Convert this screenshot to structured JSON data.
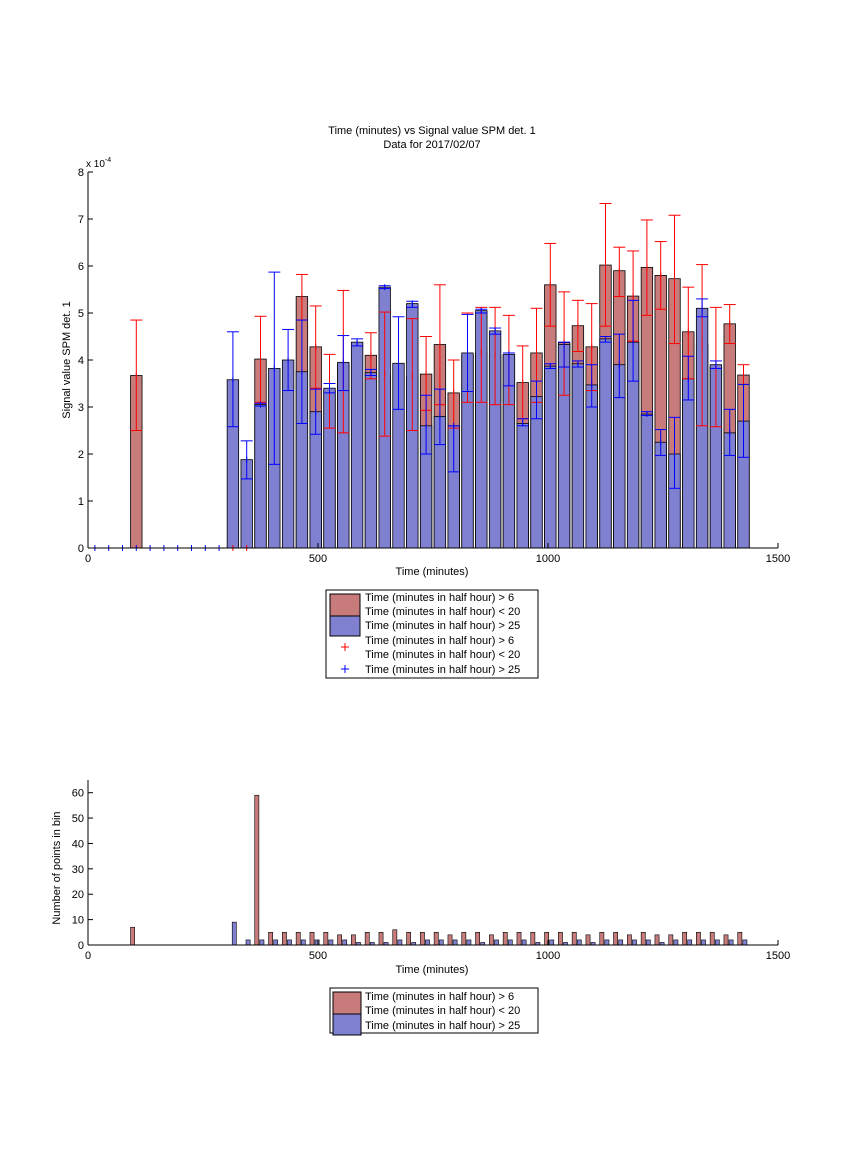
{
  "colors": {
    "red_fill": "#C77B7B",
    "blue_fill": "#8080D0",
    "red_err": "#FF0000",
    "blue_err": "#0000FF"
  },
  "chart_data": [
    {
      "type": "bar",
      "title": "Time (minutes) vs Signal value SPM det. 1",
      "subtitle": "Data for 2017/02/07",
      "xlabel": "Time (minutes)",
      "ylabel": "Signal value SPM det. 1",
      "y_exponent": "x 10",
      "y_exponent_power": "-4",
      "xlim": [
        0,
        1500
      ],
      "ylim": [
        0,
        8
      ],
      "xticks": [
        "0",
        "500",
        "1000",
        "1500"
      ],
      "yticks": [
        "0",
        "1",
        "2",
        "3",
        "4",
        "5",
        "6",
        "7",
        "8"
      ],
      "legend": {
        "placement": "below",
        "entries": [
          "Time (minutes in half hour) > 6",
          "Time (minutes in half hour) < 20",
          "Time (minutes in half hour) > 25",
          "Time (minutes in half hour) > 6",
          "Time (minutes in half hour) < 20",
          "Time (minutes in half hour) > 25"
        ]
      },
      "series": [
        {
          "name": "Time (minutes in half hour) > 6 & Time (minutes in half hour) < 20",
          "bars": [
            {
              "x": 105,
              "y": 3.67,
              "lo": 2.5,
              "hi": 4.85
            },
            {
              "x": 375,
              "y": 4.02,
              "lo": 3.1,
              "hi": 4.93
            },
            {
              "x": 465,
              "y": 5.35,
              "lo": 4.85,
              "hi": 5.82
            },
            {
              "x": 495,
              "y": 4.28,
              "lo": 3.4,
              "hi": 5.15
            },
            {
              "x": 525,
              "y": 3.35,
              "lo": 2.55,
              "hi": 4.12
            },
            {
              "x": 555,
              "y": 3.9,
              "lo": 2.45,
              "hi": 5.48
            },
            {
              "x": 615,
              "y": 4.1,
              "lo": 3.6,
              "hi": 4.58
            },
            {
              "x": 645,
              "y": 3.7,
              "lo": 2.38,
              "hi": 5.02
            },
            {
              "x": 705,
              "y": 3.65,
              "lo": 2.5,
              "hi": 4.88
            },
            {
              "x": 735,
              "y": 3.7,
              "lo": 2.93,
              "hi": 4.5
            },
            {
              "x": 765,
              "y": 4.33,
              "lo": 3.05,
              "hi": 5.6
            },
            {
              "x": 795,
              "y": 3.3,
              "lo": 2.55,
              "hi": 4.0
            },
            {
              "x": 825,
              "y": 4.1,
              "lo": 3.1,
              "hi": 5.0
            },
            {
              "x": 855,
              "y": 4.15,
              "lo": 3.1,
              "hi": 5.12
            },
            {
              "x": 885,
              "y": 4.1,
              "lo": 3.05,
              "hi": 5.12
            },
            {
              "x": 915,
              "y": 4.1,
              "lo": 3.05,
              "hi": 4.95
            },
            {
              "x": 945,
              "y": 3.52,
              "lo": 2.75,
              "hi": 4.3
            },
            {
              "x": 975,
              "y": 4.15,
              "lo": 3.1,
              "hi": 5.1
            },
            {
              "x": 1005,
              "y": 5.6,
              "lo": 4.72,
              "hi": 6.48
            },
            {
              "x": 1035,
              "y": 4.37,
              "lo": 3.25,
              "hi": 5.45
            },
            {
              "x": 1065,
              "y": 4.73,
              "lo": 4.18,
              "hi": 5.27
            },
            {
              "x": 1095,
              "y": 4.28,
              "lo": 3.35,
              "hi": 5.2
            },
            {
              "x": 1125,
              "y": 6.02,
              "lo": 4.72,
              "hi": 7.33
            },
            {
              "x": 1155,
              "y": 5.9,
              "lo": 5.35,
              "hi": 6.4
            },
            {
              "x": 1185,
              "y": 5.36,
              "lo": 4.4,
              "hi": 6.32
            },
            {
              "x": 1215,
              "y": 5.97,
              "lo": 4.95,
              "hi": 6.98
            },
            {
              "x": 1245,
              "y": 5.8,
              "lo": 5.08,
              "hi": 6.52
            },
            {
              "x": 1275,
              "y": 5.73,
              "lo": 4.35,
              "hi": 7.08
            },
            {
              "x": 1305,
              "y": 4.6,
              "lo": 3.6,
              "hi": 5.55
            },
            {
              "x": 1335,
              "y": 4.33,
              "lo": 2.6,
              "hi": 6.03
            },
            {
              "x": 1365,
              "y": 3.85,
              "lo": 2.58,
              "hi": 5.12
            },
            {
              "x": 1395,
              "y": 4.77,
              "lo": 4.35,
              "hi": 5.18
            },
            {
              "x": 1425,
              "y": 3.68,
              "lo": 3.48,
              "hi": 3.9
            }
          ]
        },
        {
          "name": "Time (minutes in half hour) > 25",
          "bars": [
            {
              "x": 315,
              "y": 3.58,
              "lo": 2.58,
              "hi": 4.6
            },
            {
              "x": 345,
              "y": 1.88,
              "lo": 1.47,
              "hi": 2.28
            },
            {
              "x": 375,
              "y": 3.05,
              "lo": 3.02,
              "hi": 3.08
            },
            {
              "x": 405,
              "y": 3.82,
              "lo": 1.78,
              "hi": 5.87
            },
            {
              "x": 435,
              "y": 4.0,
              "lo": 3.35,
              "hi": 4.65
            },
            {
              "x": 465,
              "y": 3.75,
              "lo": 2.65,
              "hi": 4.85
            },
            {
              "x": 495,
              "y": 2.9,
              "lo": 2.42,
              "hi": 3.38
            },
            {
              "x": 525,
              "y": 3.4,
              "lo": 3.3,
              "hi": 3.5
            },
            {
              "x": 555,
              "y": 3.95,
              "lo": 3.35,
              "hi": 4.52
            },
            {
              "x": 585,
              "y": 4.38,
              "lo": 4.3,
              "hi": 4.45
            },
            {
              "x": 615,
              "y": 3.73,
              "lo": 3.67,
              "hi": 3.8
            },
            {
              "x": 645,
              "y": 5.55,
              "lo": 5.52,
              "hi": 5.58
            },
            {
              "x": 675,
              "y": 3.93,
              "lo": 2.95,
              "hi": 4.92
            },
            {
              "x": 705,
              "y": 5.2,
              "lo": 5.12,
              "hi": 5.25
            },
            {
              "x": 735,
              "y": 2.6,
              "lo": 2.0,
              "hi": 3.25
            },
            {
              "x": 765,
              "y": 2.8,
              "lo": 2.2,
              "hi": 3.38
            },
            {
              "x": 795,
              "y": 2.6,
              "lo": 1.62,
              "hi": 2.6
            },
            {
              "x": 825,
              "y": 4.15,
              "lo": 3.33,
              "hi": 4.97
            },
            {
              "x": 855,
              "y": 5.05,
              "lo": 5.0,
              "hi": 5.08
            },
            {
              "x": 885,
              "y": 4.62,
              "lo": 4.55,
              "hi": 4.68
            },
            {
              "x": 915,
              "y": 4.12,
              "lo": 3.45,
              "hi": 4.15
            },
            {
              "x": 945,
              "y": 2.65,
              "lo": 2.6,
              "hi": 2.75
            },
            {
              "x": 975,
              "y": 3.22,
              "lo": 2.75,
              "hi": 3.55
            },
            {
              "x": 1005,
              "y": 3.87,
              "lo": 3.82,
              "hi": 3.92
            },
            {
              "x": 1035,
              "y": 4.33,
              "lo": 3.85,
              "hi": 4.38
            },
            {
              "x": 1065,
              "y": 3.92,
              "lo": 3.85,
              "hi": 3.98
            },
            {
              "x": 1095,
              "y": 3.47,
              "lo": 3.0,
              "hi": 3.9
            },
            {
              "x": 1125,
              "y": 4.45,
              "lo": 4.38,
              "hi": 4.5
            },
            {
              "x": 1155,
              "y": 3.9,
              "lo": 3.2,
              "hi": 4.55
            },
            {
              "x": 1185,
              "y": 4.38,
              "lo": 3.55,
              "hi": 5.27
            },
            {
              "x": 1215,
              "y": 2.85,
              "lo": 2.82,
              "hi": 2.9
            },
            {
              "x": 1245,
              "y": 2.25,
              "lo": 1.97,
              "hi": 2.52
            },
            {
              "x": 1275,
              "y": 2.0,
              "lo": 1.27,
              "hi": 2.78
            },
            {
              "x": 1305,
              "y": 3.6,
              "lo": 3.15,
              "hi": 4.08
            },
            {
              "x": 1335,
              "y": 5.1,
              "lo": 4.92,
              "hi": 5.3
            },
            {
              "x": 1365,
              "y": 3.9,
              "lo": 3.82,
              "hi": 3.98
            },
            {
              "x": 1395,
              "y": 2.45,
              "lo": 1.97,
              "hi": 2.95
            },
            {
              "x": 1425,
              "y": 2.7,
              "lo": 1.93,
              "hi": 3.48
            }
          ]
        }
      ],
      "zero_markers": [
        {
          "series": 1,
          "x": [
            15,
            45,
            75,
            105,
            135,
            165,
            195,
            225,
            255,
            285
          ]
        },
        {
          "series": 0,
          "x": [
            315,
            345
          ]
        }
      ]
    },
    {
      "type": "bar",
      "xlabel": "Time (minutes)",
      "ylabel": "Number of points in bin",
      "xlim": [
        0,
        1500
      ],
      "ylim": [
        0,
        65
      ],
      "xticks": [
        "0",
        "500",
        "1000",
        "1500"
      ],
      "yticks": [
        "0",
        "10",
        "20",
        "30",
        "40",
        "50",
        "60"
      ],
      "legend": {
        "placement": "below",
        "entries": [
          "Time (minutes in half hour) > 6",
          "Time (minutes in half hour) < 20",
          "Time (minutes in half hour) > 25"
        ]
      },
      "series": [
        {
          "name": "Time (minutes in half hour) > 6 & Time (minutes in half hour) < 20",
          "bars": [
            {
              "x": 97,
              "y": 7
            },
            {
              "x": 367,
              "y": 59
            },
            {
              "x": 397,
              "y": 5
            },
            {
              "x": 427,
              "y": 5
            },
            {
              "x": 457,
              "y": 5
            },
            {
              "x": 487,
              "y": 5
            },
            {
              "x": 517,
              "y": 5
            },
            {
              "x": 547,
              "y": 4
            },
            {
              "x": 577,
              "y": 4
            },
            {
              "x": 607,
              "y": 5
            },
            {
              "x": 637,
              "y": 5
            },
            {
              "x": 667,
              "y": 6
            },
            {
              "x": 697,
              "y": 5
            },
            {
              "x": 727,
              "y": 5
            },
            {
              "x": 757,
              "y": 5
            },
            {
              "x": 787,
              "y": 4
            },
            {
              "x": 817,
              "y": 5
            },
            {
              "x": 847,
              "y": 5
            },
            {
              "x": 877,
              "y": 4
            },
            {
              "x": 907,
              "y": 5
            },
            {
              "x": 937,
              "y": 5
            },
            {
              "x": 967,
              "y": 5
            },
            {
              "x": 997,
              "y": 5
            },
            {
              "x": 1027,
              "y": 5
            },
            {
              "x": 1057,
              "y": 5
            },
            {
              "x": 1087,
              "y": 4
            },
            {
              "x": 1117,
              "y": 5
            },
            {
              "x": 1147,
              "y": 5
            },
            {
              "x": 1177,
              "y": 4
            },
            {
              "x": 1207,
              "y": 5
            },
            {
              "x": 1237,
              "y": 4
            },
            {
              "x": 1267,
              "y": 4
            },
            {
              "x": 1297,
              "y": 5
            },
            {
              "x": 1327,
              "y": 5
            },
            {
              "x": 1357,
              "y": 5
            },
            {
              "x": 1387,
              "y": 4
            },
            {
              "x": 1417,
              "y": 5
            }
          ]
        },
        {
          "name": "Time (minutes in half hour) > 25",
          "bars": [
            {
              "x": 318,
              "y": 9
            },
            {
              "x": 348,
              "y": 2
            },
            {
              "x": 378,
              "y": 2
            },
            {
              "x": 408,
              "y": 2
            },
            {
              "x": 438,
              "y": 2
            },
            {
              "x": 468,
              "y": 2
            },
            {
              "x": 498,
              "y": 2
            },
            {
              "x": 528,
              "y": 2
            },
            {
              "x": 558,
              "y": 2
            },
            {
              "x": 588,
              "y": 1
            },
            {
              "x": 618,
              "y": 1
            },
            {
              "x": 648,
              "y": 1
            },
            {
              "x": 678,
              "y": 2
            },
            {
              "x": 708,
              "y": 1
            },
            {
              "x": 738,
              "y": 2
            },
            {
              "x": 768,
              "y": 2
            },
            {
              "x": 798,
              "y": 2
            },
            {
              "x": 828,
              "y": 2
            },
            {
              "x": 858,
              "y": 1
            },
            {
              "x": 888,
              "y": 2
            },
            {
              "x": 918,
              "y": 2
            },
            {
              "x": 948,
              "y": 2
            },
            {
              "x": 978,
              "y": 1
            },
            {
              "x": 1008,
              "y": 2
            },
            {
              "x": 1038,
              "y": 1
            },
            {
              "x": 1068,
              "y": 2
            },
            {
              "x": 1098,
              "y": 1
            },
            {
              "x": 1128,
              "y": 2
            },
            {
              "x": 1158,
              "y": 2
            },
            {
              "x": 1188,
              "y": 2
            },
            {
              "x": 1218,
              "y": 2
            },
            {
              "x": 1248,
              "y": 1
            },
            {
              "x": 1278,
              "y": 2
            },
            {
              "x": 1308,
              "y": 2
            },
            {
              "x": 1338,
              "y": 2
            },
            {
              "x": 1368,
              "y": 2
            },
            {
              "x": 1398,
              "y": 2
            },
            {
              "x": 1428,
              "y": 2
            }
          ]
        }
      ]
    }
  ]
}
